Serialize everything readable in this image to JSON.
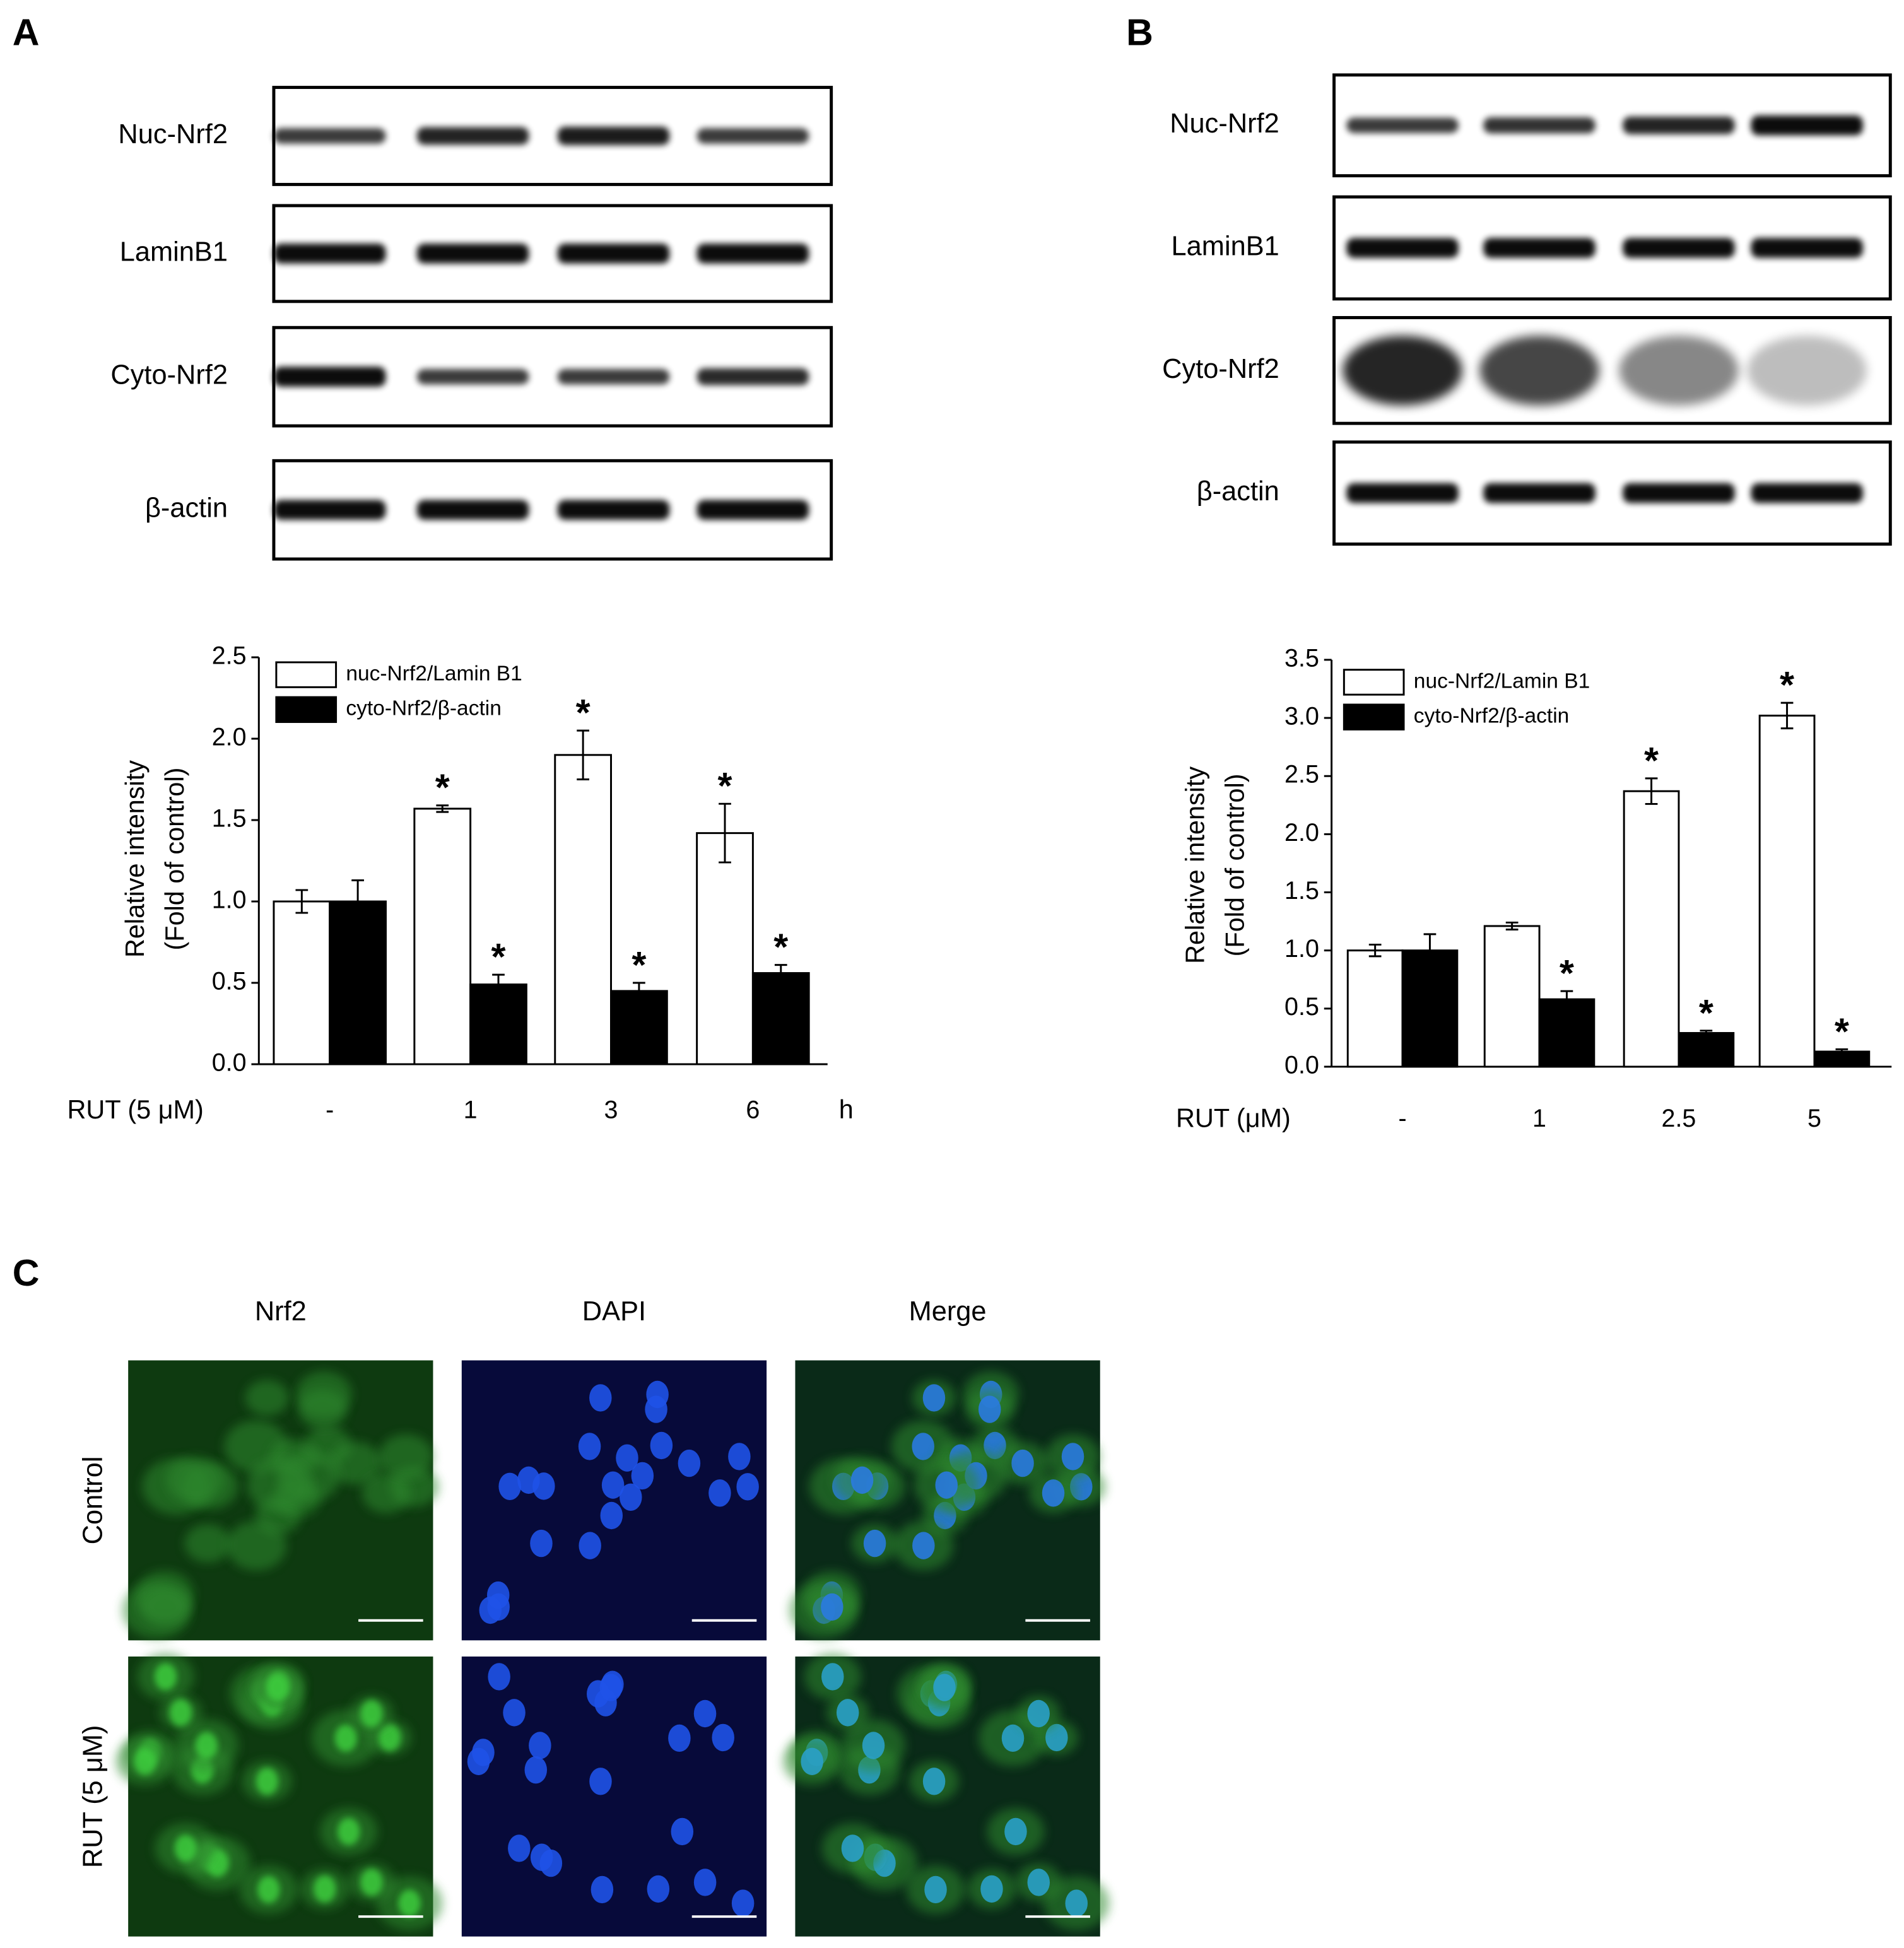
{
  "panels": {
    "a": "A",
    "b": "B",
    "c": "C"
  },
  "blots": [
    {
      "labels": [
        "Nuc-Nrf2",
        "LaminB1",
        "Cyto-Nrf2",
        "β-actin"
      ]
    },
    {
      "labels": [
        "Nuc-Nrf2",
        "LaminB1",
        "Cyto-Nrf2",
        "β-actin"
      ]
    }
  ],
  "chart_data": [
    {
      "type": "bar",
      "y_label": [
        "Relative intensity",
        "(Fold of control)"
      ],
      "x_label": "RUT  (5 μM)",
      "x_unit": "h",
      "categories": [
        "-",
        "1",
        "3",
        "6"
      ],
      "series": [
        {
          "name": "nuc-Nrf2/Lamin B1",
          "color": "#ffffff",
          "values": [
            1.0,
            1.57,
            1.9,
            1.42
          ],
          "errors": [
            0.07,
            0.02,
            0.15,
            0.18
          ],
          "markers": [
            null,
            "*",
            "*",
            "*"
          ]
        },
        {
          "name": "cyto-Nrf2/β-actin",
          "color": "#000000",
          "values": [
            1.0,
            0.49,
            0.45,
            0.56
          ],
          "errors": [
            0.13,
            0.06,
            0.05,
            0.05
          ],
          "markers": [
            null,
            "*",
            "*",
            "*"
          ]
        }
      ],
      "ylim": [
        0,
        2.5
      ],
      "yticks": [
        {
          "value": 0,
          "label": "0.0"
        },
        {
          "value": 0.5,
          "label": "0.5"
        },
        {
          "value": 1,
          "label": "1.0"
        },
        {
          "value": 1.5,
          "label": "1.5"
        },
        {
          "value": 2,
          "label": "2.0"
        },
        {
          "value": 2.5,
          "label": "2.5"
        }
      ],
      "legend": "upper left"
    },
    {
      "type": "bar",
      "y_label": [
        "Relative intensity",
        "(Fold of control)"
      ],
      "x_label": "RUT  (μM)",
      "categories": [
        "-",
        "1",
        "2.5",
        "5"
      ],
      "series": [
        {
          "name": "nuc-Nrf2/Lamin B1",
          "color": "#ffffff",
          "values": [
            1.0,
            1.21,
            2.37,
            3.02
          ],
          "errors": [
            0.05,
            0.03,
            0.11,
            0.11
          ],
          "markers": [
            null,
            null,
            "*",
            "*"
          ]
        },
        {
          "name": "cyto-Nrf2/β-actin",
          "color": "#000000",
          "values": [
            1.0,
            0.58,
            0.29,
            0.13
          ],
          "errors": [
            0.14,
            0.07,
            0.02,
            0.02
          ],
          "markers": [
            null,
            "*",
            "*",
            "*"
          ]
        }
      ],
      "ylim": [
        0,
        3.5
      ],
      "yticks": [
        {
          "value": 0,
          "label": "0.0"
        },
        {
          "value": 0.5,
          "label": "0.5"
        },
        {
          "value": 1,
          "label": "1.0"
        },
        {
          "value": 1.5,
          "label": "1.5"
        },
        {
          "value": 2,
          "label": "2.0"
        },
        {
          "value": 2.5,
          "label": "2.5"
        },
        {
          "value": 3,
          "label": "3.0"
        },
        {
          "value": 3.5,
          "label": "3.5"
        }
      ],
      "legend": "upper left"
    }
  ],
  "microscopy": {
    "columns": [
      "Nrf2",
      "DAPI",
      "Merge"
    ],
    "rows": [
      "Control",
      "RUT  (5 μM)"
    ]
  }
}
